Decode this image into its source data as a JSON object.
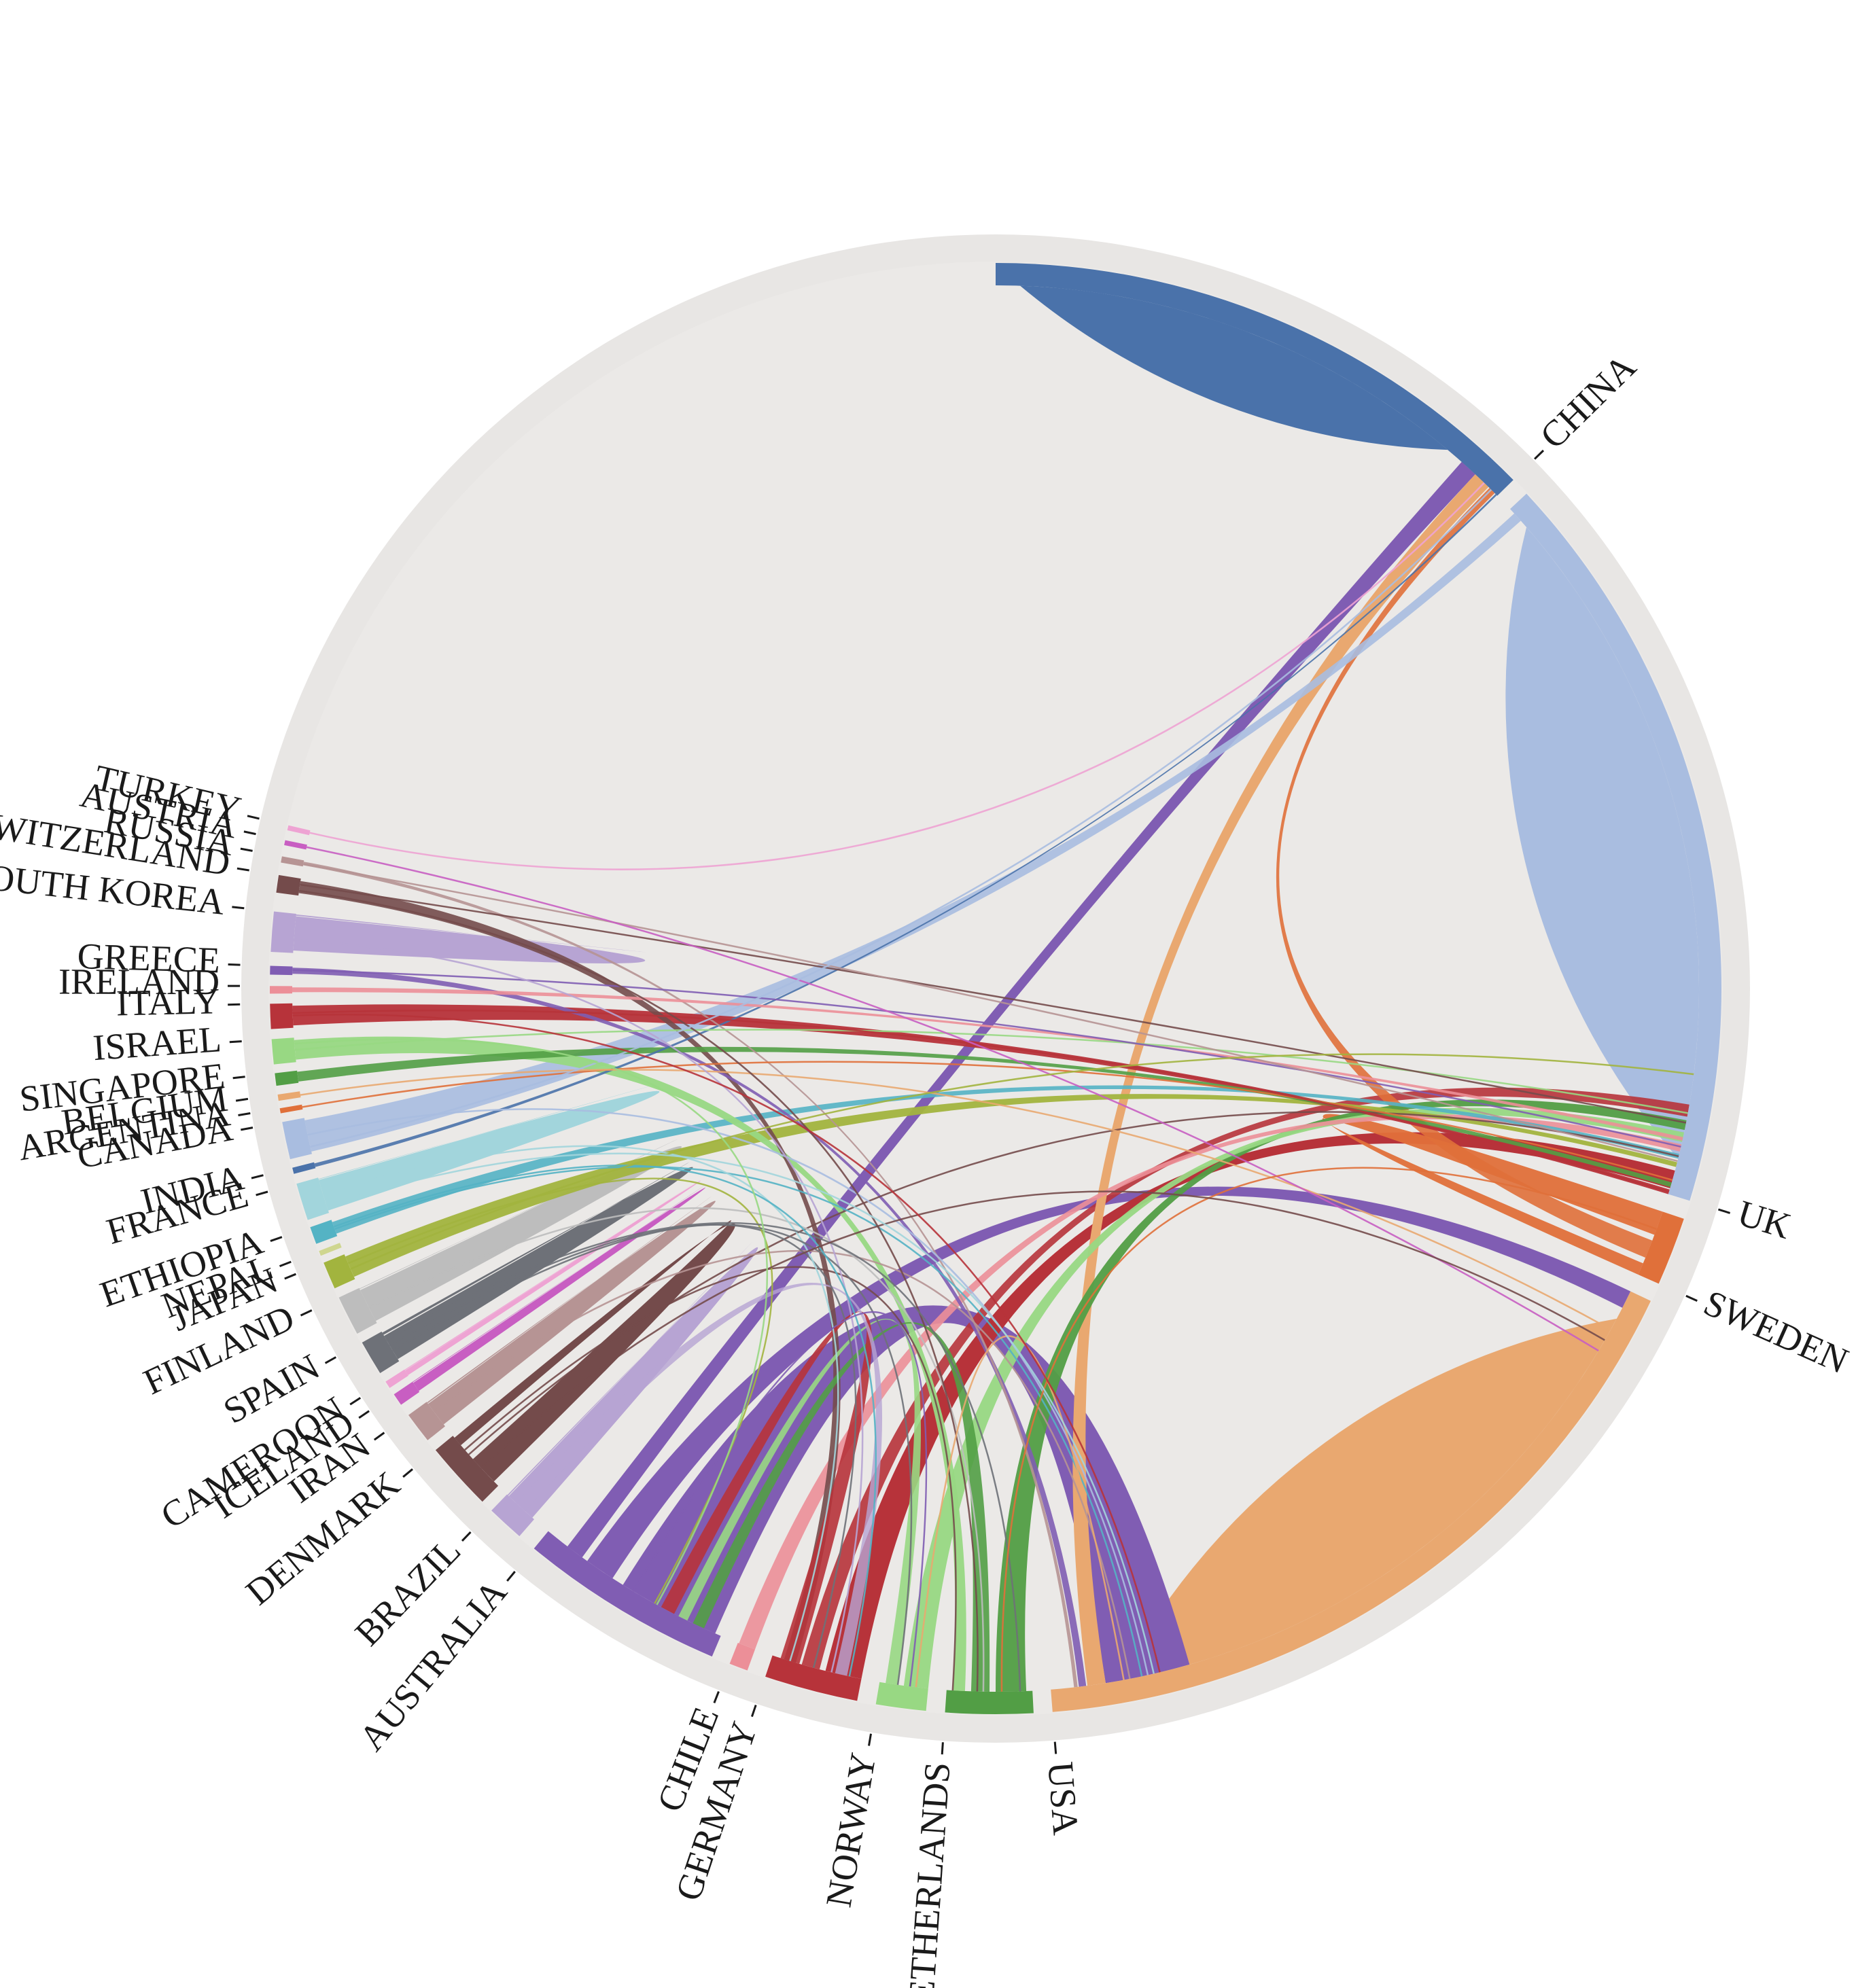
{
  "diagram": {
    "type": "chord",
    "background_ring_color": "#e8e6e4",
    "countries": [
      {
        "name": "CHINA",
        "color": "#4a72aa"
      },
      {
        "name": "UK",
        "color": "#a9bde0"
      },
      {
        "name": "SWEDEN",
        "color": "#e0703a"
      },
      {
        "name": "USA",
        "color": "#e9a870"
      },
      {
        "name": "NETHERLANDS",
        "color": "#529e45"
      },
      {
        "name": "NORWAY",
        "color": "#98d883"
      },
      {
        "name": "GERMANY",
        "color": "#b7333a"
      },
      {
        "name": "CHILE",
        "color": "#ec8f98"
      },
      {
        "name": "AUSTRALIA",
        "color": "#805db3"
      },
      {
        "name": "BRAZIL",
        "color": "#b7a4d3"
      },
      {
        "name": "DENMARK",
        "color": "#744b4b"
      },
      {
        "name": "IRAN",
        "color": "#b69494"
      },
      {
        "name": "ICELAND",
        "color": "#c85ec2"
      },
      {
        "name": "CAMEROON",
        "color": "#eea3d3"
      },
      {
        "name": "SPAIN",
        "color": "#6e7178"
      },
      {
        "name": "FINLAND",
        "color": "#bdbdbd"
      },
      {
        "name": "JAPAN",
        "color": "#a2b43e"
      },
      {
        "name": "NEPAL",
        "color": "#cfd68f"
      },
      {
        "name": "ETHIOPIA",
        "color": "#54b3c4"
      },
      {
        "name": "FRANCE",
        "color": "#a2d5dc"
      },
      {
        "name": "INDIA",
        "color": "#4a72aa"
      },
      {
        "name": "CANADA",
        "color": "#a9bde0"
      },
      {
        "name": "ARGENTINA",
        "color": "#e0703a"
      },
      {
        "name": "BELGIUM",
        "color": "#e9a870"
      },
      {
        "name": "SINGAPORE",
        "color": "#529e45"
      },
      {
        "name": "ISRAEL",
        "color": "#98d883"
      },
      {
        "name": "ITALY",
        "color": "#b7333a"
      },
      {
        "name": "IRELAND",
        "color": "#ec8f98"
      },
      {
        "name": "GREECE",
        "color": "#805db3"
      },
      {
        "name": "SOUTH KOREA",
        "color": "#b7a4d3"
      },
      {
        "name": "SWITZERLAND",
        "color": "#744b4b"
      },
      {
        "name": "RUSSIA",
        "color": "#b69494"
      },
      {
        "name": "AUSTRIA",
        "color": "#c85ec2"
      },
      {
        "name": "TURKEY",
        "color": "#eea3d3"
      }
    ]
  }
}
